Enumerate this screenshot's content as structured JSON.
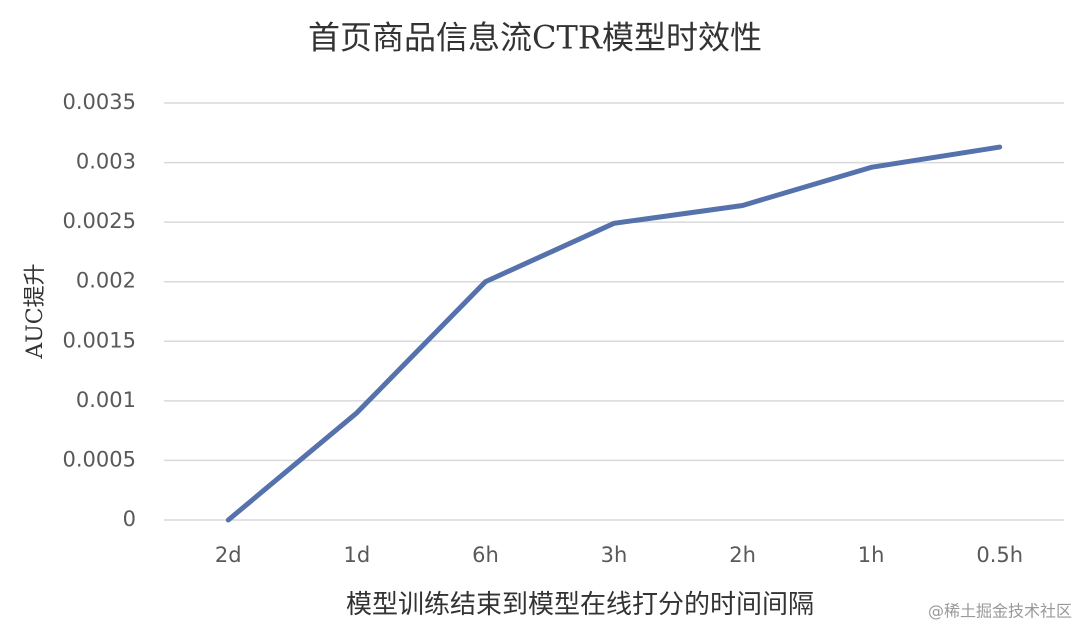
{
  "chart_data": {
    "type": "line",
    "title": "首页商品信息流CTR模型时效性",
    "y_label": "AUC提升",
    "x_label": "模型训练结束到模型在线打分的时间间隔",
    "categories": [
      "2d",
      "1d",
      "6h",
      "3h",
      "2h",
      "1h",
      "0.5h"
    ],
    "series": [
      {
        "color": "#5672ad",
        "values": [
          0,
          0.0009,
          0.002,
          0.00249,
          0.00264,
          0.00296,
          0.00313
        ]
      }
    ],
    "ylim": [
      0,
      0.0035
    ],
    "yticks": [
      0,
      0.0005,
      0.001,
      0.0015,
      0.002,
      0.0025,
      0.003,
      0.0035
    ],
    "grid": true
  },
  "watermark": "@稀土掘金技术社区"
}
